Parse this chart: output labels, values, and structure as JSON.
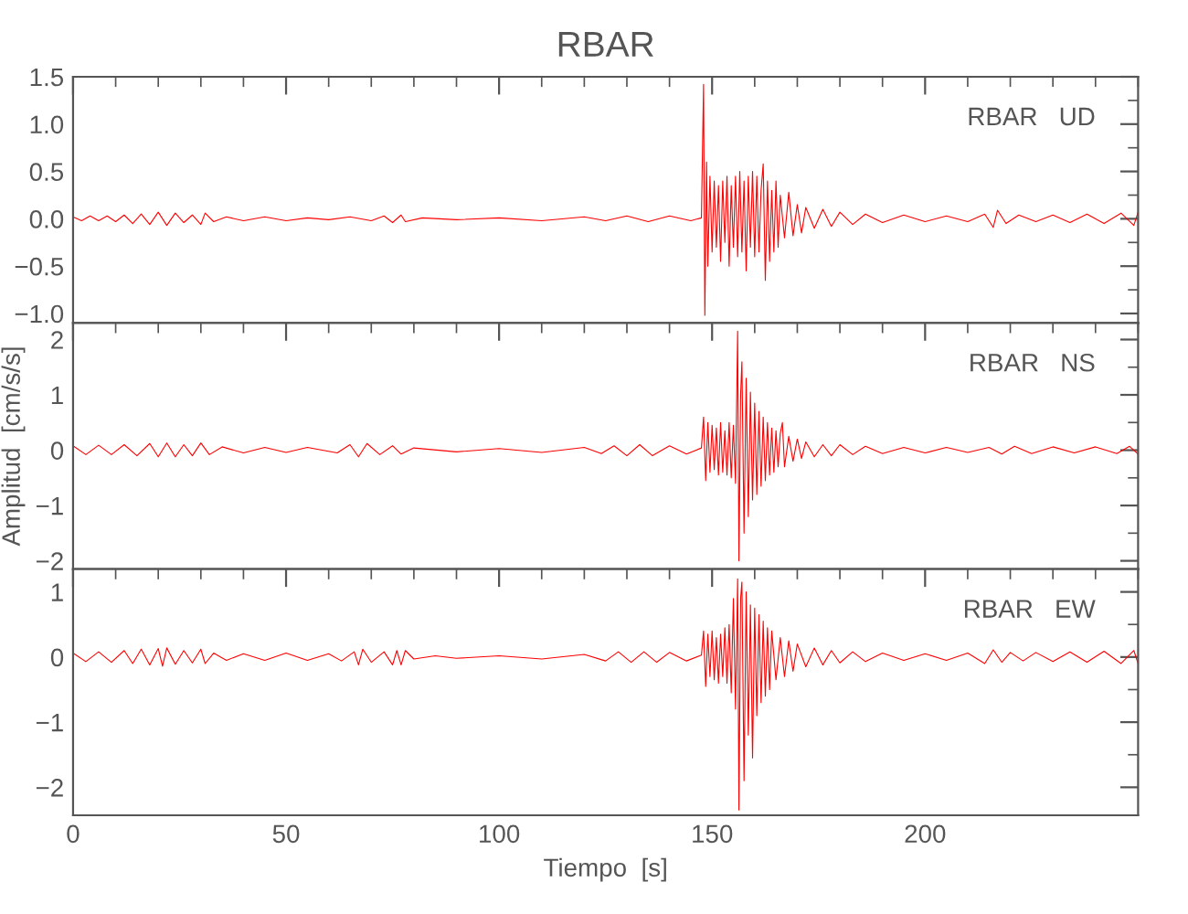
{
  "chart_data": [
    {
      "type": "line",
      "title": "RBAR",
      "annotations": [
        "RBAR   UD"
      ],
      "tick_labels": "y",
      "xlim": [
        0,
        250
      ],
      "xticks": [
        0,
        50,
        100,
        150,
        200
      ],
      "ylim": [
        -1.1,
        1.5
      ],
      "yticks": [
        {
          "value": -1.0,
          "label": "−1.0"
        },
        {
          "value": -0.5,
          "label": "−0.5"
        },
        {
          "value": 0.0,
          "label": "0.0"
        },
        {
          "value": 0.5,
          "label": "0.5"
        },
        {
          "value": 1.0,
          "label": "1.0"
        },
        {
          "value": 1.5,
          "label": "1.5"
        }
      ],
      "series": [
        {
          "color": "#ff0000",
          "x": [
            0,
            2,
            4,
            6,
            8,
            10,
            12,
            14,
            16,
            18,
            20,
            22,
            24,
            26,
            28,
            30,
            31,
            33,
            36,
            40,
            45,
            50,
            55,
            60,
            65,
            70,
            73,
            75,
            77,
            78,
            82,
            90,
            100,
            110,
            120,
            125,
            130,
            135,
            140,
            145,
            147.5,
            148,
            148.3,
            148.7,
            149,
            149.5,
            150,
            150.5,
            151,
            151.5,
            152,
            152.5,
            153,
            153.5,
            154,
            154.5,
            155,
            155.5,
            156,
            156.5,
            157,
            157.5,
            158,
            158.5,
            159,
            159.5,
            160,
            160.5,
            161,
            161.5,
            162,
            162.5,
            163,
            163.5,
            164,
            164.5,
            165,
            165.5,
            166,
            167,
            168,
            169,
            170,
            171,
            172,
            174,
            176,
            178,
            180,
            183,
            186,
            190,
            195,
            200,
            205,
            210,
            214,
            216,
            217,
            219,
            222,
            226,
            230,
            234,
            238,
            242,
            246,
            249,
            250
          ],
          "values": [
            0.02,
            -0.02,
            0.03,
            -0.02,
            0.03,
            -0.03,
            0.04,
            -0.05,
            0.05,
            -0.06,
            0.07,
            -0.07,
            0.06,
            -0.04,
            0.04,
            -0.06,
            0.06,
            -0.03,
            0.02,
            -0.02,
            0.02,
            -0.02,
            0.01,
            -0.01,
            0.02,
            -0.02,
            0.03,
            -0.04,
            0.04,
            -0.03,
            0.01,
            -0.01,
            0.01,
            -0.02,
            0.02,
            -0.02,
            0.03,
            -0.03,
            0.03,
            -0.02,
            0.01,
            1.42,
            -1.02,
            0.6,
            -0.5,
            0.45,
            -0.35,
            0.4,
            -0.3,
            0.35,
            -0.45,
            0.4,
            -0.25,
            0.45,
            -0.5,
            0.35,
            -0.3,
            0.45,
            -0.4,
            0.5,
            -0.35,
            0.4,
            -0.55,
            0.45,
            -0.3,
            0.5,
            -0.4,
            0.45,
            -0.35,
            0.3,
            0.58,
            -0.65,
            0.4,
            -0.45,
            0.3,
            -0.35,
            0.4,
            -0.3,
            0.25,
            -0.2,
            0.28,
            -0.18,
            0.15,
            -0.15,
            0.12,
            -0.1,
            0.1,
            -0.08,
            0.07,
            -0.06,
            0.05,
            -0.04,
            0.04,
            -0.03,
            0.03,
            -0.03,
            0.05,
            -0.09,
            0.09,
            -0.05,
            0.04,
            -0.03,
            0.04,
            -0.04,
            0.05,
            -0.05,
            0.06,
            -0.07,
            0.07
          ]
        }
      ]
    },
    {
      "type": "line",
      "annotations": [
        "RBAR   NS"
      ],
      "tick_labels": "y",
      "ylabel": "Amplitud  [cm/s/s]",
      "xlim": [
        0,
        250
      ],
      "xticks": [
        0,
        50,
        100,
        150,
        200
      ],
      "ylim": [
        -2.15,
        2.3
      ],
      "yticks": [
        {
          "value": -2,
          "label": "−2"
        },
        {
          "value": -1,
          "label": "−1"
        },
        0,
        1,
        2
      ],
      "series": [
        {
          "color": "#ff0000",
          "x": [
            0,
            3,
            6,
            9,
            12,
            15,
            18,
            20,
            22,
            24,
            26,
            28,
            30,
            32,
            35,
            40,
            45,
            50,
            55,
            62,
            65,
            67,
            69,
            72,
            75,
            77,
            80,
            90,
            100,
            110,
            120,
            124,
            127,
            130,
            133,
            136,
            140,
            144,
            147.5,
            148,
            148.5,
            149,
            149.5,
            150,
            150.5,
            151,
            151.5,
            152,
            152.5,
            153,
            153.5,
            154,
            154.5,
            155,
            155.5,
            156,
            156.3,
            156.7,
            157,
            157.5,
            158,
            158.5,
            159,
            159.5,
            160,
            160.5,
            161,
            161.5,
            162,
            162.5,
            163,
            163.5,
            164,
            164.5,
            165,
            165.5,
            166,
            166.5,
            167,
            168,
            169,
            170,
            171,
            172,
            174,
            176,
            178,
            180,
            183,
            186,
            190,
            195,
            200,
            205,
            210,
            215,
            218,
            221,
            225,
            230,
            235,
            240,
            245,
            248,
            250
          ],
          "values": [
            0.08,
            -0.08,
            0.09,
            -0.08,
            0.1,
            -0.1,
            0.12,
            -0.12,
            0.13,
            -0.12,
            0.1,
            -0.1,
            0.13,
            -0.08,
            0.06,
            -0.05,
            0.05,
            -0.04,
            0.05,
            -0.05,
            0.1,
            -0.12,
            0.12,
            -0.08,
            0.08,
            -0.07,
            0.04,
            -0.03,
            0.03,
            -0.04,
            0.05,
            -0.06,
            0.08,
            -0.1,
            0.1,
            -0.1,
            0.08,
            -0.07,
            0.04,
            0.6,
            -0.55,
            0.5,
            -0.4,
            0.45,
            -0.35,
            0.4,
            -0.45,
            0.5,
            -0.4,
            0.35,
            -0.45,
            0.5,
            -0.5,
            0.45,
            -0.6,
            2.15,
            -2.0,
            1.0,
            1.6,
            -1.5,
            1.3,
            -1.2,
            1.05,
            -0.9,
            0.85,
            -0.8,
            0.7,
            -0.65,
            0.6,
            -0.55,
            0.5,
            -0.45,
            0.4,
            -0.4,
            0.35,
            -0.3,
            0.3,
            0.5,
            -0.3,
            0.25,
            -0.2,
            0.2,
            -0.15,
            0.15,
            -0.12,
            0.1,
            -0.1,
            0.1,
            -0.08,
            0.07,
            -0.06,
            0.05,
            -0.05,
            0.05,
            -0.04,
            0.05,
            -0.07,
            0.07,
            -0.06,
            0.06,
            -0.05,
            0.06,
            -0.06,
            0.07,
            -0.07
          ]
        }
      ]
    },
    {
      "type": "line",
      "annotations": [
        "RBAR   EW"
      ],
      "xlabel": "Tiempo  [s]",
      "xlim": [
        0,
        250
      ],
      "xticks": [
        0,
        50,
        100,
        150,
        200
      ],
      "ylim": [
        -2.43,
        1.35
      ],
      "yticks": [
        {
          "value": -2,
          "label": "−2"
        },
        {
          "value": -1,
          "label": "−1"
        },
        0,
        1
      ],
      "series": [
        {
          "color": "#ff0000",
          "x": [
            0,
            3,
            6,
            9,
            12,
            14,
            16,
            18,
            20,
            21,
            22,
            24,
            26,
            28,
            30,
            31,
            33,
            36,
            40,
            45,
            50,
            55,
            60,
            63,
            66,
            67,
            68,
            70,
            73,
            75,
            76,
            77,
            78,
            80,
            85,
            90,
            100,
            110,
            120,
            125,
            128,
            131,
            134,
            137,
            140,
            144,
            147.5,
            148,
            148.5,
            149,
            149.5,
            150,
            150.5,
            151,
            151.5,
            152,
            152.5,
            153,
            153.5,
            154,
            154.5,
            155,
            155.5,
            156,
            156.3,
            156.7,
            157,
            157.5,
            158,
            158.5,
            159,
            159.5,
            160,
            160.5,
            161,
            161.5,
            162,
            162.5,
            163,
            163.5,
            164,
            165,
            166,
            167,
            168,
            169,
            170,
            172,
            174,
            176,
            178,
            180,
            183,
            186,
            190,
            195,
            200,
            205,
            210,
            214,
            216,
            218,
            220,
            223,
            226,
            230,
            234,
            238,
            242,
            246,
            249,
            250
          ],
          "values": [
            0.06,
            -0.07,
            0.08,
            -0.08,
            0.1,
            -0.1,
            0.12,
            -0.12,
            0.13,
            -0.14,
            0.14,
            -0.11,
            0.1,
            -0.09,
            0.12,
            -0.1,
            0.06,
            -0.05,
            0.05,
            -0.05,
            0.06,
            -0.05,
            0.05,
            -0.06,
            0.08,
            -0.12,
            0.12,
            -0.08,
            0.08,
            -0.12,
            0.1,
            -0.12,
            0.1,
            -0.03,
            0.02,
            -0.02,
            0.02,
            -0.03,
            0.04,
            -0.06,
            0.08,
            -0.08,
            0.08,
            -0.08,
            0.07,
            -0.06,
            0.03,
            0.4,
            -0.45,
            0.35,
            -0.3,
            0.4,
            -0.35,
            0.3,
            -0.4,
            0.35,
            -0.3,
            0.45,
            -0.4,
            0.5,
            -0.55,
            0.9,
            -0.8,
            1.2,
            -2.35,
            0.9,
            1.15,
            -1.9,
            1.0,
            -1.2,
            0.8,
            -1.55,
            0.75,
            -0.9,
            0.65,
            -0.7,
            0.55,
            -0.6,
            0.45,
            -0.5,
            0.4,
            -0.35,
            0.3,
            -0.3,
            0.25,
            -0.22,
            0.2,
            -0.15,
            0.14,
            -0.12,
            0.1,
            -0.09,
            0.08,
            -0.07,
            0.06,
            -0.05,
            0.05,
            -0.05,
            0.06,
            -0.1,
            0.11,
            -0.08,
            0.07,
            -0.06,
            0.07,
            -0.07,
            0.08,
            -0.08,
            0.09,
            -0.1,
            0.1,
            -0.1
          ]
        }
      ]
    }
  ]
}
